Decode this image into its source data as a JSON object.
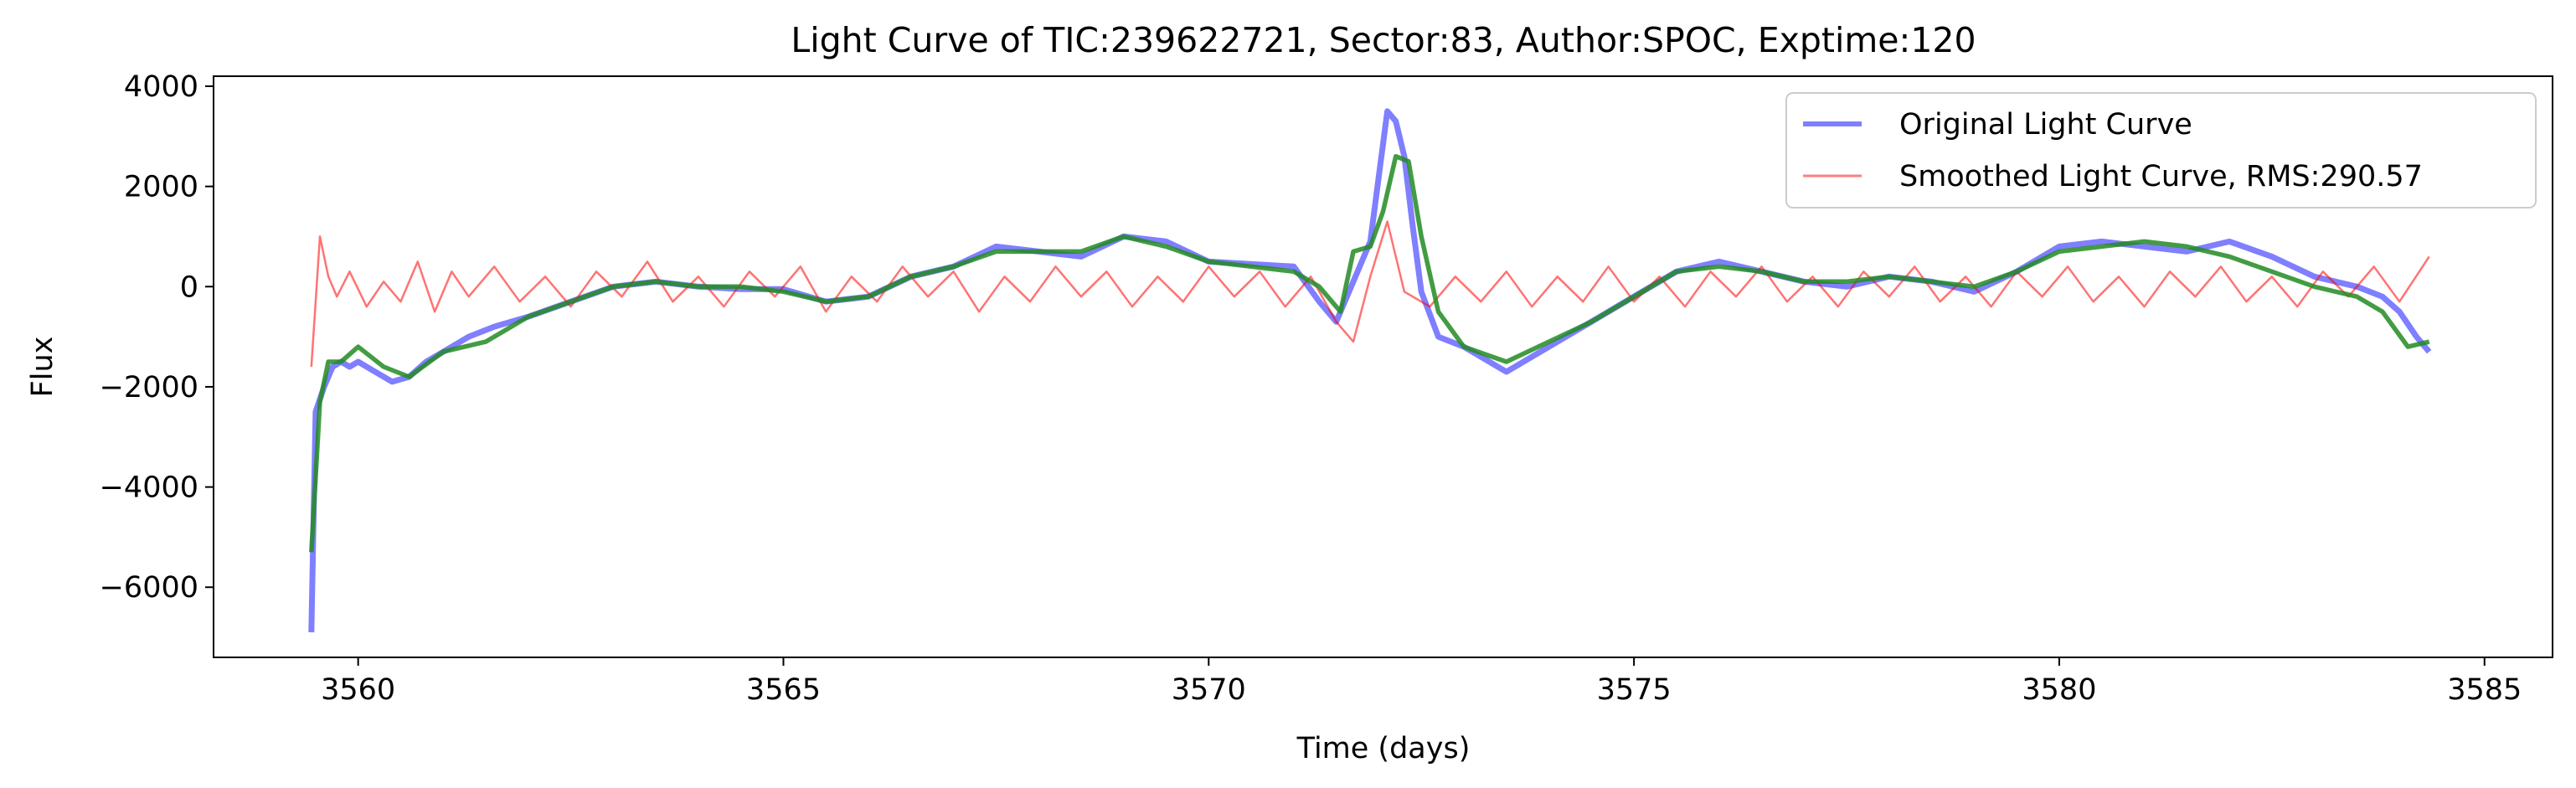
{
  "chart_data": {
    "type": "line",
    "title": "Light Curve of TIC:239622721, Sector:83, Author:SPOC, Exptime:120",
    "xlabel": "Time (days)",
    "ylabel": "Flux",
    "xlim": [
      3558.3,
      3585.8
    ],
    "ylim": [
      -7400,
      4200
    ],
    "x_ticks": [
      3560,
      3565,
      3570,
      3575,
      3580,
      3585
    ],
    "x_tick_labels": [
      "3560",
      "3565",
      "3570",
      "3575",
      "3580",
      "3585"
    ],
    "y_ticks": [
      -6000,
      -4000,
      -2000,
      0,
      2000,
      4000
    ],
    "y_tick_labels": [
      "−6000",
      "−4000",
      "−2000",
      "0",
      "2000",
      "4000"
    ],
    "grid": false,
    "legend_position": "top-right",
    "series": [
      {
        "name": "Original Light Curve",
        "color": "#0000ff",
        "role": "original",
        "x": [
          3559.45,
          3559.5,
          3559.6,
          3559.7,
          3559.8,
          3559.9,
          3560.0,
          3560.2,
          3560.4,
          3560.6,
          3560.8,
          3561.0,
          3561.3,
          3561.6,
          3562.0,
          3562.5,
          3563.0,
          3563.5,
          3564.0,
          3564.5,
          3565.0,
          3565.5,
          3566.0,
          3566.5,
          3567.0,
          3567.5,
          3568.0,
          3568.5,
          3569.0,
          3569.5,
          3570.0,
          3570.5,
          3571.0,
          3571.3,
          3571.5,
          3571.7,
          3571.9,
          3572.0,
          3572.1,
          3572.2,
          3572.3,
          3572.4,
          3572.5,
          3572.7,
          3573.0,
          3573.5,
          3574.0,
          3574.5,
          3575.0,
          3575.5,
          3576.0,
          3576.5,
          3577.0,
          3577.5,
          3578.0,
          3578.5,
          3579.0,
          3579.5,
          3580.0,
          3580.5,
          3581.0,
          3581.5,
          3582.0,
          3582.5,
          3583.0,
          3583.5,
          3583.8,
          3584.0,
          3584.2,
          3584.35
        ],
        "y": [
          -6900,
          -2500,
          -2000,
          -1600,
          -1500,
          -1600,
          -1500,
          -1700,
          -1900,
          -1800,
          -1500,
          -1300,
          -1000,
          -800,
          -600,
          -300,
          0,
          100,
          0,
          -50,
          -50,
          -300,
          -200,
          200,
          400,
          800,
          700,
          600,
          1000,
          900,
          500,
          450,
          400,
          -300,
          -700,
          100,
          900,
          2200,
          3500,
          3300,
          2600,
          1200,
          -100,
          -1000,
          -1200,
          -1700,
          -1200,
          -700,
          -200,
          300,
          500,
          300,
          100,
          0,
          200,
          100,
          -100,
          300,
          800,
          900,
          800,
          700,
          900,
          600,
          200,
          0,
          -200,
          -500,
          -1000,
          -1300
        ]
      },
      {
        "name": "Smoothed Light Curve, RMS:290.57",
        "color": "#ff0000",
        "role": "smoothed",
        "x": [
          3559.45,
          3559.55,
          3559.65,
          3559.75,
          3559.9,
          3560.1,
          3560.3,
          3560.5,
          3560.7,
          3560.9,
          3561.1,
          3561.3,
          3561.6,
          3561.9,
          3562.2,
          3562.5,
          3562.8,
          3563.1,
          3563.4,
          3563.7,
          3564.0,
          3564.3,
          3564.6,
          3564.9,
          3565.2,
          3565.5,
          3565.8,
          3566.1,
          3566.4,
          3566.7,
          3567.0,
          3567.3,
          3567.6,
          3567.9,
          3568.2,
          3568.5,
          3568.8,
          3569.1,
          3569.4,
          3569.7,
          3570.0,
          3570.3,
          3570.6,
          3570.9,
          3571.2,
          3571.5,
          3571.7,
          3571.9,
          3572.1,
          3572.3,
          3572.6,
          3572.9,
          3573.2,
          3573.5,
          3573.8,
          3574.1,
          3574.4,
          3574.7,
          3575.0,
          3575.3,
          3575.6,
          3575.9,
          3576.2,
          3576.5,
          3576.8,
          3577.1,
          3577.4,
          3577.7,
          3578.0,
          3578.3,
          3578.6,
          3578.9,
          3579.2,
          3579.5,
          3579.8,
          3580.1,
          3580.4,
          3580.7,
          3581.0,
          3581.3,
          3581.6,
          3581.9,
          3582.2,
          3582.5,
          3582.8,
          3583.1,
          3583.4,
          3583.7,
          3584.0,
          3584.35
        ],
        "y": [
          -1600,
          1000,
          200,
          -200,
          300,
          -400,
          100,
          -300,
          500,
          -500,
          300,
          -200,
          400,
          -300,
          200,
          -400,
          300,
          -200,
          500,
          -300,
          200,
          -400,
          300,
          -200,
          400,
          -500,
          200,
          -300,
          400,
          -200,
          300,
          -500,
          200,
          -300,
          400,
          -200,
          300,
          -400,
          200,
          -300,
          400,
          -200,
          300,
          -400,
          200,
          -700,
          -1100,
          200,
          1300,
          -100,
          -400,
          200,
          -300,
          300,
          -400,
          200,
          -300,
          400,
          -300,
          200,
          -400,
          300,
          -200,
          400,
          -300,
          200,
          -400,
          300,
          -200,
          400,
          -300,
          200,
          -400,
          300,
          -200,
          400,
          -300,
          200,
          -400,
          300,
          -200,
          400,
          -300,
          200,
          -400,
          300,
          -200,
          400,
          -300,
          600
        ]
      },
      {
        "name": "",
        "color": "#228b22",
        "role": "trend",
        "x": [
          3559.45,
          3559.55,
          3559.65,
          3559.8,
          3560.0,
          3560.3,
          3560.6,
          3561.0,
          3561.5,
          3562.0,
          3562.5,
          3563.0,
          3563.5,
          3564.0,
          3564.5,
          3565.0,
          3565.5,
          3566.0,
          3566.5,
          3567.0,
          3567.5,
          3568.0,
          3568.5,
          3569.0,
          3569.5,
          3570.0,
          3570.5,
          3571.0,
          3571.3,
          3571.55,
          3571.7,
          3571.9,
          3572.05,
          3572.2,
          3572.35,
          3572.5,
          3572.7,
          3573.0,
          3573.5,
          3574.0,
          3574.5,
          3575.0,
          3575.5,
          3576.0,
          3576.5,
          3577.0,
          3577.5,
          3578.0,
          3578.5,
          3579.0,
          3579.5,
          3580.0,
          3580.5,
          3581.0,
          3581.5,
          3582.0,
          3582.5,
          3583.0,
          3583.5,
          3583.8,
          3584.1,
          3584.35
        ],
        "y": [
          -5300,
          -2300,
          -1500,
          -1500,
          -1200,
          -1600,
          -1800,
          -1300,
          -1100,
          -600,
          -300,
          0,
          100,
          0,
          0,
          -100,
          -300,
          -200,
          200,
          400,
          700,
          700,
          700,
          1000,
          800,
          500,
          400,
          300,
          0,
          -500,
          700,
          800,
          1500,
          2600,
          2500,
          1000,
          -500,
          -1200,
          -1500,
          -1100,
          -700,
          -200,
          300,
          400,
          300,
          100,
          100,
          200,
          100,
          0,
          300,
          700,
          800,
          900,
          800,
          600,
          300,
          0,
          -200,
          -500,
          -1200,
          -1100
        ]
      }
    ],
    "legend": [
      {
        "label": "Original Light Curve",
        "color": "#0000ff"
      },
      {
        "label": "Smoothed Light Curve, RMS:290.57",
        "color": "#ff0000"
      }
    ]
  }
}
